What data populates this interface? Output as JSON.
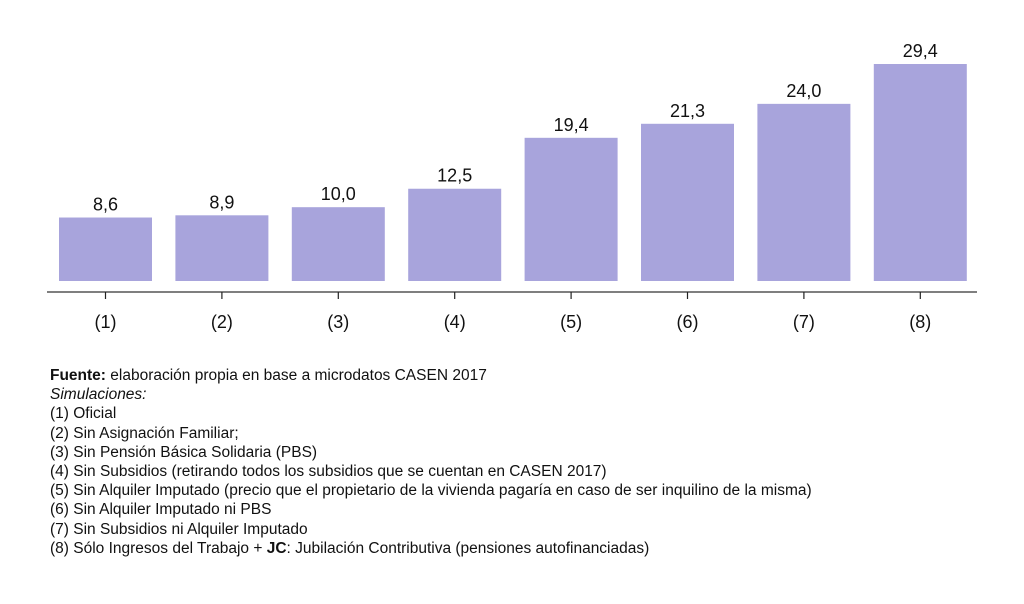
{
  "chart_data": {
    "type": "bar",
    "categories": [
      "(1)",
      "(2)",
      "(3)",
      "(4)",
      "(5)",
      "(6)",
      "(7)",
      "(8)"
    ],
    "values": [
      8.6,
      8.9,
      10.0,
      12.5,
      19.4,
      21.3,
      24.0,
      29.4
    ],
    "data_labels": [
      "8,6",
      "8,9",
      "10,0",
      "12,5",
      "19,4",
      "21,3",
      "24,0",
      "29,4"
    ],
    "title": "",
    "xlabel": "",
    "ylabel": "",
    "ylim": [
      0,
      29.4
    ],
    "grid": false,
    "bar_color": "#a8a4dc",
    "axis_color": "#555555"
  },
  "notes": {
    "source_label": "Fuente:",
    "source_text": " elaboración propia en base a microdatos CASEN 2017",
    "simulations_heading": "Simulaciones:",
    "items": [
      "(1) Oficial",
      "(2) Sin Asignación Familiar;",
      "(3) Sin Pensión Básica Solidaria (PBS)",
      "(4) Sin Subsidios (retirando todos los subsidios que se cuentan en CASEN 2017)",
      "(5) Sin Alquiler Imputado (precio que el propietario de la vivienda pagaría en caso de ser inquilino de la misma)",
      "(6) Sin Alquiler Imputado ni PBS",
      "(7) Sin Subsidios ni Alquiler Imputado"
    ],
    "item8_prefix": "(8) Sólo Ingresos del Trabajo + ",
    "item8_bold": "JC",
    "item8_suffix": ": Jubilación Contributiva (pensiones autofinanciadas)"
  }
}
